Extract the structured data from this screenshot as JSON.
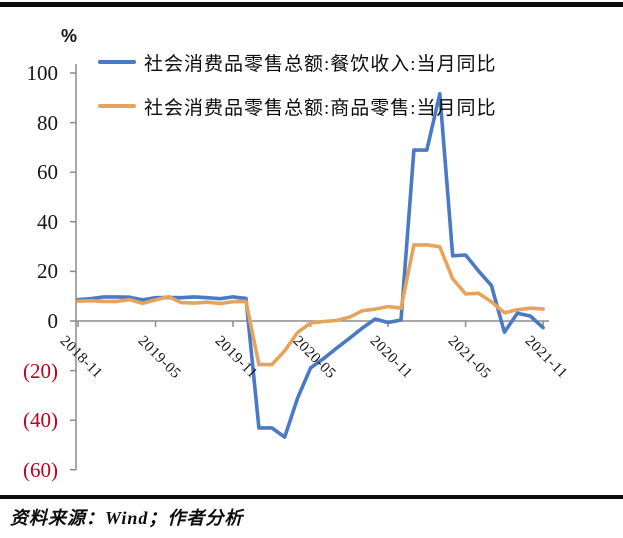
{
  "chart_data": {
    "type": "line",
    "title": "",
    "unit_label": "%",
    "grid": false,
    "legend_position": "top-left-inside",
    "ylim": [
      -60,
      100
    ],
    "x": [
      "2018-11",
      "2018-12",
      "2019-01",
      "2019-02",
      "2019-03",
      "2019-04",
      "2019-05",
      "2019-06",
      "2019-07",
      "2019-08",
      "2019-09",
      "2019-10",
      "2019-11",
      "2019-12",
      "2020-01",
      "2020-02",
      "2020-03",
      "2020-04",
      "2020-05",
      "2020-06",
      "2020-07",
      "2020-08",
      "2020-09",
      "2020-10",
      "2020-11",
      "2020-12",
      "2021-01",
      "2021-02",
      "2021-03",
      "2021-04",
      "2021-05",
      "2021-06",
      "2021-07",
      "2021-08",
      "2021-09",
      "2021-10",
      "2021-11"
    ],
    "x_tick_labels": [
      "2018-11",
      "2019-05",
      "2019-11",
      "2020-05",
      "2020-11",
      "2021-05",
      "2021-11"
    ],
    "y_tick_values": [
      100,
      80,
      60,
      40,
      20,
      0,
      -20,
      -40,
      -60
    ],
    "y_tick_labels": [
      "100",
      "80",
      "60",
      "40",
      "20",
      "0",
      "(20)",
      "(40)",
      "(60)"
    ],
    "series": [
      {
        "name": "社会消费品零售总额:餐饮收入:当月同比",
        "color": "#4a79c5",
        "values": [
          8.6,
          9.0,
          9.7,
          9.7,
          9.6,
          8.5,
          9.4,
          9.5,
          9.4,
          9.7,
          9.4,
          9.0,
          9.7,
          9.1,
          -43.1,
          -43.1,
          -46.8,
          -31.1,
          -18.9,
          -15.2,
          -11.0,
          -7.0,
          -2.9,
          0.8,
          -0.6,
          0.4,
          68.9,
          68.9,
          91.6,
          26.3,
          26.6,
          20.2,
          14.3,
          -4.5,
          3.1,
          2.0,
          -2.7
        ]
      },
      {
        "name": "社会消费品零售总额:商品零售:当月同比",
        "color": "#e6a35c",
        "values": [
          8.0,
          8.2,
          7.9,
          7.9,
          8.6,
          7.1,
          8.5,
          9.8,
          7.4,
          7.2,
          7.6,
          7.0,
          7.8,
          7.9,
          -17.6,
          -17.6,
          -12.0,
          -4.6,
          -0.8,
          -0.2,
          0.2,
          1.5,
          4.1,
          4.8,
          5.8,
          5.2,
          30.7,
          30.7,
          29.9,
          17.0,
          10.9,
          11.2,
          7.8,
          3.3,
          4.5,
          5.2,
          4.8
        ]
      }
    ],
    "colors": {
      "axis": "#8c8c8c",
      "tick_label": "#161616",
      "negative_tick_label": "#c00020"
    }
  },
  "source": {
    "text": "资料来源：Wind；作者分析"
  }
}
